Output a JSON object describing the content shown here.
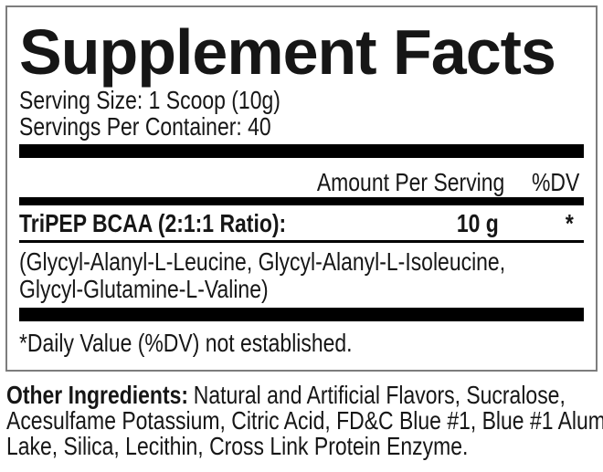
{
  "supplement_facts": {
    "title": "Supplement Facts",
    "serving_size": "Serving Size: 1 Scoop (10g)",
    "servings_per_container": "Servings Per Container: 40",
    "column_headers": {
      "amount": "Amount Per Serving",
      "dv": "%DV"
    },
    "rows": [
      {
        "name": "TriPEP BCAA (2:1:1 Ratio):",
        "amount": "10 g",
        "dv": "*"
      }
    ],
    "ingredient_detail_lines": [
      "(Glycyl-Alanyl-L-Leucine, Glycyl-Alanyl-L-Isoleucine,",
      "Glycyl-Glutamine-L-Valine)"
    ],
    "footnote": "*Daily Value (%DV) not established."
  },
  "other_ingredients": {
    "label": "Other Ingredients:",
    "lines": [
      "Natural and Artificial Flavors, Sucralose,",
      "Acesulfame Potassium, Citric Acid, FD&C Blue #1, Blue #1 Alum",
      "Lake, Silica, Lecithin, Cross Link Protein Enzyme."
    ]
  },
  "colors": {
    "bar_color": "#000000",
    "panel_border_color": "#7d7d7d",
    "text_color": "#161616"
  }
}
